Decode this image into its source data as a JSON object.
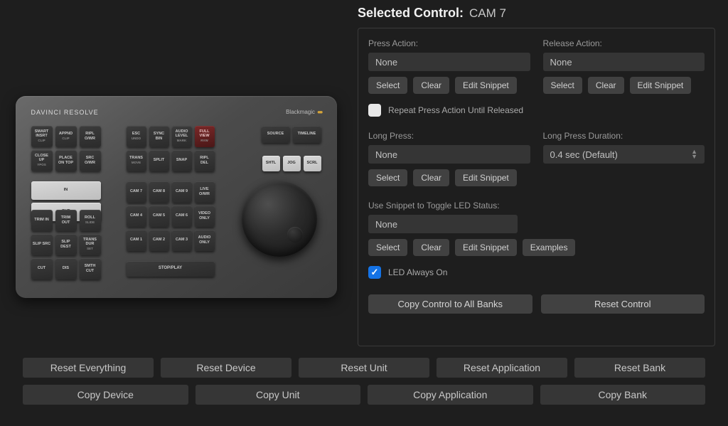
{
  "header": {
    "label": "Selected Control:",
    "value": "CAM 7"
  },
  "press": {
    "label": "Press Action:",
    "value": "None"
  },
  "release": {
    "label": "Release Action:",
    "value": "None"
  },
  "longpress": {
    "label": "Long Press:",
    "value": "None"
  },
  "duration": {
    "label": "Long Press Duration:",
    "value": "0.4 sec (Default)"
  },
  "snippet": {
    "label": "Use Snippet to Toggle LED Status:",
    "value": "None"
  },
  "buttons": {
    "select": "Select",
    "clear": "Clear",
    "edit": "Edit Snippet",
    "examples": "Examples"
  },
  "repeat": {
    "label": "Repeat Press Action Until Released",
    "checked": false
  },
  "led": {
    "label": "LED Always On",
    "checked": true
  },
  "wide": {
    "copy": "Copy Control to All Banks",
    "reset": "Reset Control"
  },
  "bottom": {
    "row1": [
      "Reset Everything",
      "Reset Device",
      "Reset Unit",
      "Reset Application",
      "Reset Bank"
    ],
    "row2": [
      "Copy Device",
      "Copy Unit",
      "Copy Application",
      "Copy Bank"
    ]
  },
  "device": {
    "title": "DAVINCI RESOLVE",
    "brand": "Blackmagic",
    "clusterA": [
      {
        "t": "SMART INSRT",
        "s": "CLIP"
      },
      {
        "t": "APPND",
        "s": "CLIP"
      },
      {
        "t": "RIPL O/WR",
        "s": ""
      },
      {
        "t": "CLOSE UP",
        "s": "YPOS"
      },
      {
        "t": "PLACE ON TOP",
        "s": ""
      },
      {
        "t": "SRC O/WR"
      }
    ],
    "clusterB": [
      {
        "t": "ESC",
        "s": "UNDO"
      },
      {
        "t": "SYNC BIN",
        "s": ""
      },
      {
        "t": "AUDIO LEVEL",
        "s": "MARK"
      },
      {
        "t": "FULL VIEW",
        "s": "RVW",
        "red": true
      },
      {
        "t": "TRANS",
        "s": "MOVE"
      },
      {
        "t": "SPLIT",
        "s": ""
      },
      {
        "t": "SNAP",
        "s": ""
      },
      {
        "t": "RIPL DEL",
        "s": ""
      }
    ],
    "clusterC": [
      {
        "t": "SOURCE"
      },
      {
        "t": "TIMELINE"
      }
    ],
    "clusterD": [
      {
        "t": "SHTL",
        "light": true
      },
      {
        "t": "JOG",
        "light": true
      },
      {
        "t": "SCRL",
        "light": true
      }
    ],
    "clusterE": [
      {
        "t": "IN",
        "light": true,
        "w": 2
      },
      {
        "t": "OUT",
        "light": true,
        "w": 2
      }
    ],
    "clusterF": [
      {
        "t": "TRIM IN"
      },
      {
        "t": "TRIM OUT"
      },
      {
        "t": "ROLL",
        "s": "SLIDE"
      },
      {
        "t": "SLIP SRC"
      },
      {
        "t": "SLIP DEST"
      },
      {
        "t": "TRANS DUR",
        "s": "SET"
      },
      {
        "t": "CUT"
      },
      {
        "t": "DIS"
      },
      {
        "t": "SMTH CUT"
      }
    ],
    "clusterG": [
      {
        "t": "CAM 7"
      },
      {
        "t": "CAM 8"
      },
      {
        "t": "CAM 9"
      },
      {
        "t": "LIVE O/WR"
      },
      {
        "t": "CAM 4"
      },
      {
        "t": "CAM 5"
      },
      {
        "t": "CAM 6"
      },
      {
        "t": "VIDEO ONLY"
      },
      {
        "t": "CAM 1"
      },
      {
        "t": "CAM 2"
      },
      {
        "t": "CAM 3"
      },
      {
        "t": "AUDIO ONLY"
      }
    ],
    "stopplay": "STOP/PLAY"
  }
}
